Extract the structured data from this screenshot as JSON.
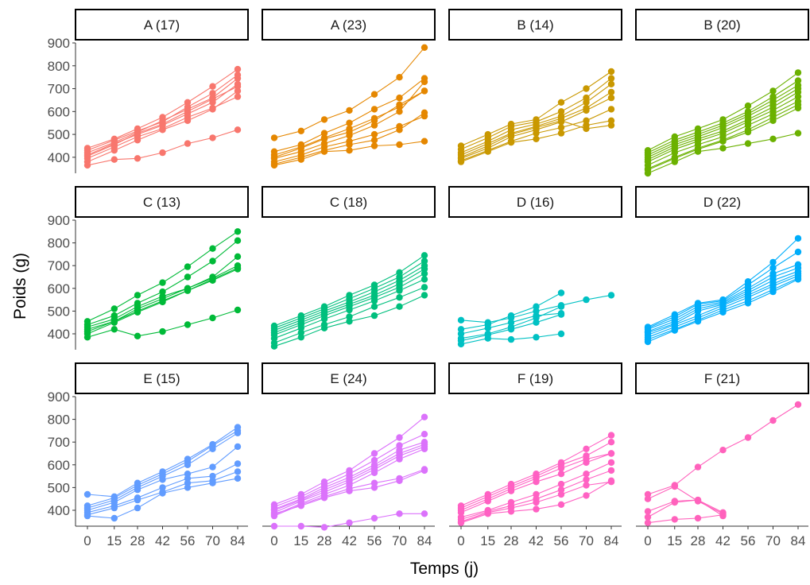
{
  "chart_data": {
    "type": "line",
    "xlabel": "Temps (j)",
    "ylabel": "Poids (g)",
    "x_ticks": [
      0,
      15,
      28,
      42,
      56,
      70,
      84
    ],
    "y_ticks": [
      400,
      500,
      600,
      700,
      800,
      900
    ],
    "ylim": [
      330,
      900
    ],
    "xlim": [
      0,
      84
    ],
    "grid": false,
    "legend": "none",
    "marker": "filled-circle",
    "panels": [
      {
        "label": "A (17)",
        "color": "#F8766D",
        "series": [
          {
            "values": [
              420,
              465,
              510,
              560,
              610,
              660,
              745
            ]
          },
          {
            "values": [
              405,
              455,
              505,
              545,
              600,
              655,
              710
            ]
          },
          {
            "values": [
              395,
              445,
              490,
              525,
              575,
              615,
              665
            ]
          },
          {
            "values": [
              380,
              430,
              475,
              520,
              560,
              610,
              690
            ]
          },
          {
            "values": [
              440,
              480,
              525,
              575,
              640,
              710,
              785
            ]
          },
          {
            "values": [
              365,
              390,
              395,
              420,
              460,
              485,
              520
            ]
          },
          {
            "values": [
              430,
              475,
              515,
              555,
              620,
              680,
              760
            ]
          },
          {
            "values": [
              410,
              460,
              500,
              540,
              590,
              640,
              720
            ]
          }
        ]
      },
      {
        "label": "A (23)",
        "color": "#E58700",
        "series": [
          {
            "values": [
              485,
              515,
              565,
              605,
              675,
              750,
              880
            ]
          },
          {
            "values": [
              425,
              455,
              505,
              550,
              610,
              660,
              745
            ]
          },
          {
            "values": [
              410,
              445,
              485,
              525,
              570,
              620,
              690
            ]
          },
          {
            "values": [
              395,
              425,
              460,
              495,
              540,
              600,
              730
            ]
          },
          {
            "values": [
              380,
              410,
              445,
              470,
              500,
              535,
              580
            ]
          },
          {
            "values": [
              370,
              400,
              430,
              455,
              475,
              520,
              595
            ]
          },
          {
            "values": [
              365,
              390,
              425,
              430,
              450,
              455,
              470
            ]
          },
          {
            "values": [
              400,
              440,
              480,
              510,
              560,
              630,
              690
            ]
          }
        ]
      },
      {
        "label": "B (14)",
        "color": "#C99800",
        "series": [
          {
            "values": [
              450,
              500,
              545,
              565,
              640,
              700,
              775
            ]
          },
          {
            "values": [
              435,
              485,
              535,
              555,
              600,
              660,
              745
            ]
          },
          {
            "values": [
              420,
              470,
              520,
              545,
              580,
              640,
              720
            ]
          },
          {
            "values": [
              410,
              460,
              505,
              535,
              570,
              615,
              685
            ]
          },
          {
            "values": [
              395,
              440,
              490,
              520,
              555,
              605,
              660
            ]
          },
          {
            "values": [
              385,
              430,
              470,
              505,
              530,
              560,
              610
            ]
          },
          {
            "values": [
              380,
              425,
              465,
              480,
              505,
              540,
              560
            ]
          },
          {
            "values": [
              400,
              450,
              500,
              530,
              560,
              525,
              540
            ]
          }
        ]
      },
      {
        "label": "B (20)",
        "color": "#6BB100",
        "series": [
          {
            "values": [
              430,
              490,
              525,
              565,
              625,
              690,
              770
            ]
          },
          {
            "values": [
              420,
              475,
              510,
              550,
              600,
              665,
              735
            ]
          },
          {
            "values": [
              410,
              465,
              500,
              540,
              590,
              650,
              715
            ]
          },
          {
            "values": [
              400,
              455,
              490,
              530,
              580,
              635,
              700
            ]
          },
          {
            "values": [
              390,
              445,
              480,
              515,
              565,
              620,
              685
            ]
          },
          {
            "values": [
              380,
              435,
              470,
              505,
              555,
              605,
              665
            ]
          },
          {
            "values": [
              365,
              420,
              455,
              490,
              540,
              590,
              645
            ]
          },
          {
            "values": [
              350,
              400,
              440,
              475,
              520,
              575,
              630
            ]
          },
          {
            "values": [
              330,
              380,
              425,
              440,
              460,
              480,
              505
            ]
          },
          {
            "values": [
              345,
              395,
              435,
              470,
              510,
              560,
              615
            ]
          }
        ]
      },
      {
        "label": "C (13)",
        "color": "#00BA38",
        "series": [
          {
            "values": [
              455,
              510,
              570,
              625,
              695,
              775,
              850
            ]
          },
          {
            "values": [
              440,
              480,
              535,
              585,
              650,
              720,
              810
            ]
          },
          {
            "values": [
              430,
              465,
              520,
              565,
              600,
              650,
              740
            ]
          },
          {
            "values": [
              420,
              455,
              510,
              555,
              600,
              645,
              700
            ]
          },
          {
            "values": [
              410,
              455,
              500,
              545,
              590,
              640,
              690
            ]
          },
          {
            "values": [
              385,
              420,
              390,
              410,
              440,
              470,
              505
            ]
          },
          {
            "values": [
              400,
              450,
              495,
              540,
              590,
              635,
              685
            ]
          }
        ]
      },
      {
        "label": "C (18)",
        "color": "#00BF7D",
        "series": [
          {
            "values": [
              435,
              480,
              520,
              570,
              615,
              670,
              745
            ]
          },
          {
            "values": [
              425,
              470,
              510,
              555,
              600,
              650,
              720
            ]
          },
          {
            "values": [
              415,
              460,
              500,
              540,
              585,
              635,
              700
            ]
          },
          {
            "values": [
              405,
              450,
              490,
              530,
              570,
              620,
              685
            ]
          },
          {
            "values": [
              395,
              440,
              480,
              520,
              560,
              605,
              665
            ]
          },
          {
            "values": [
              380,
              425,
              465,
              505,
              545,
              590,
              640
            ]
          },
          {
            "values": [
              360,
              405,
              440,
              475,
              520,
              560,
              605
            ]
          },
          {
            "values": [
              345,
              385,
              425,
              455,
              480,
              520,
              570
            ]
          }
        ]
      },
      {
        "label": "D (16)",
        "color": "#00C1C3",
        "series": [
          {
            "values": [
              460,
              450,
              470,
              500,
              525,
              550,
              570
            ]
          },
          {
            "values": [
              420,
              440,
              480,
              520,
              580
            ]
          },
          {
            "values": [
              400,
              425,
              450,
              480,
              490
            ]
          },
          {
            "values": [
              380,
              400,
              430,
              470,
              520
            ]
          },
          {
            "values": [
              355,
              380,
              375,
              385,
              400
            ]
          },
          {
            "values": [
              370,
              395,
              420,
              450,
              485
            ]
          }
        ]
      },
      {
        "label": "D (22)",
        "color": "#00ADFA",
        "series": [
          {
            "values": [
              430,
              485,
              535,
              550,
              630,
              715,
              820
            ]
          },
          {
            "values": [
              425,
              475,
              530,
              545,
              615,
              690,
              760
            ]
          },
          {
            "values": [
              420,
              465,
              520,
              540,
              600,
              665,
              705
            ]
          },
          {
            "values": [
              410,
              455,
              510,
              535,
              590,
              650,
              690
            ]
          },
          {
            "values": [
              405,
              445,
              500,
              530,
              580,
              635,
              675
            ]
          },
          {
            "values": [
              395,
              440,
              480,
              525,
              570,
              620,
              665
            ]
          },
          {
            "values": [
              385,
              430,
              470,
              515,
              560,
              610,
              655
            ]
          },
          {
            "values": [
              375,
              420,
              460,
              505,
              545,
              595,
              645
            ]
          },
          {
            "values": [
              365,
              415,
              455,
              495,
              535,
              585,
              640
            ]
          }
        ]
      },
      {
        "label": "E (15)",
        "color": "#619CFF",
        "series": [
          {
            "values": [
              470,
              460,
              520,
              570,
              625,
              690,
              765
            ]
          },
          {
            "values": [
              420,
              455,
              510,
              560,
              615,
              685,
              750
            ]
          },
          {
            "values": [
              410,
              445,
              500,
              550,
              600,
              670,
              740
            ]
          },
          {
            "values": [
              400,
              435,
              490,
              535,
              560,
              590,
              680
            ]
          },
          {
            "values": [
              390,
              420,
              455,
              500,
              540,
              550,
              605
            ]
          },
          {
            "values": [
              380,
              410,
              445,
              480,
              520,
              530,
              570
            ]
          },
          {
            "values": [
              375,
              365,
              410,
              475,
              500,
              520,
              540
            ]
          }
        ]
      },
      {
        "label": "E (24)",
        "color": "#DB72FB",
        "series": [
          {
            "values": [
              425,
              470,
              525,
              575,
              650,
              720,
              810
            ]
          },
          {
            "values": [
              415,
              460,
              510,
              560,
              620,
              685,
              735
            ]
          },
          {
            "values": [
              405,
              450,
              500,
              545,
              600,
              665,
              700
            ]
          },
          {
            "values": [
              400,
              445,
              490,
              535,
              590,
              650,
              690
            ]
          },
          {
            "values": [
              390,
              440,
              480,
              525,
              580,
              640,
              680
            ]
          },
          {
            "values": [
              380,
              430,
              470,
              510,
              565,
              625,
              670
            ]
          },
          {
            "values": [
              375,
              425,
              460,
              495,
              520,
              540,
              580
            ]
          },
          {
            "values": [
              385,
              420,
              455,
              485,
              500,
              530,
              575
            ]
          },
          {
            "values": [
              330,
              330,
              325,
              345,
              365,
              385,
              385
            ]
          }
        ]
      },
      {
        "label": "F (19)",
        "color": "#FF61C3",
        "series": [
          {
            "values": [
              420,
              470,
              515,
              560,
              610,
              670,
              730
            ]
          },
          {
            "values": [
              410,
              460,
              505,
              550,
              600,
              640,
              700
            ]
          },
          {
            "values": [
              400,
              450,
              495,
              540,
              585,
              625,
              650
            ]
          },
          {
            "values": [
              390,
              440,
              485,
              525,
              560,
              610,
              650
            ]
          },
          {
            "values": [
              370,
              400,
              435,
              470,
              515,
              560,
              610
            ]
          },
          {
            "values": [
              360,
              395,
              420,
              450,
              490,
              535,
              575
            ]
          },
          {
            "values": [
              350,
              390,
              410,
              435,
              470,
              510,
              525
            ]
          },
          {
            "values": [
              345,
              385,
              395,
              405,
              425,
              465,
              530
            ]
          }
        ]
      },
      {
        "label": "F (21)",
        "color": "#FF62BC",
        "series": [
          {
            "values": [
              470,
              510,
              590,
              665,
              720,
              795,
              865
            ]
          },
          {
            "values": [
              450,
              505,
              440,
              385
            ]
          },
          {
            "values": [
              395,
              440,
              445,
              390
            ]
          },
          {
            "values": [
              370,
              435,
              445,
              375
            ]
          },
          {
            "values": [
              345,
              360,
              365,
              380
            ]
          }
        ]
      }
    ]
  }
}
